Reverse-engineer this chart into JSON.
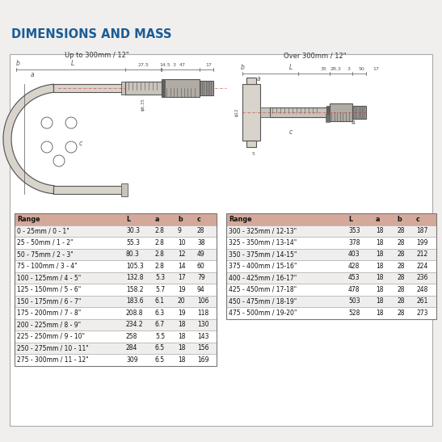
{
  "title": "DIMENSIONS AND MASS",
  "title_color": "#1a5c96",
  "bg_color": "#f0efee",
  "box_bg": "#ffffff",
  "table1_header": [
    "Range",
    "L",
    "a",
    "b",
    "c"
  ],
  "table1_header_bg": "#d4a99a",
  "table1_rows": [
    [
      "0 - 25mm / 0 - 1\"",
      "30.3",
      "2.8",
      "9",
      "28"
    ],
    [
      "25 - 50mm / 1 - 2\"",
      "55.3",
      "2.8",
      "10",
      "38"
    ],
    [
      "50 - 75mm / 2 - 3\"",
      "80.3",
      "2.8",
      "12",
      "49"
    ],
    [
      "75 - 100mm / 3 - 4\"",
      "105.3",
      "2.8",
      "14",
      "60"
    ],
    [
      "100 - 125mm / 4 - 5\"",
      "132.8",
      "5.3",
      "17",
      "79"
    ],
    [
      "125 - 150mm / 5 - 6\"",
      "158.2",
      "5.7",
      "19",
      "94"
    ],
    [
      "150 - 175mm / 6 - 7\"",
      "183.6",
      "6.1",
      "20",
      "106"
    ],
    [
      "175 - 200mm / 7 - 8\"",
      "208.8",
      "6.3",
      "19",
      "118"
    ],
    [
      "200 - 225mm / 8 - 9\"",
      "234.2",
      "6.7",
      "18",
      "130"
    ],
    [
      "225 - 250mm / 9 - 10\"",
      "258",
      "5.5",
      "18",
      "143"
    ],
    [
      "250 - 275mm / 10 - 11\"",
      "284",
      "6.5",
      "18",
      "156"
    ],
    [
      "275 - 300mm / 11 - 12\"",
      "309",
      "6.5",
      "18",
      "169"
    ]
  ],
  "table2_header": [
    "Range",
    "L",
    "a",
    "b",
    "c"
  ],
  "table2_header_bg": "#d4a99a",
  "table2_rows": [
    [
      "300 - 325mm / 12-13\"",
      "353",
      "18",
      "28",
      "187"
    ],
    [
      "325 - 350mm / 13-14\"",
      "378",
      "18",
      "28",
      "199"
    ],
    [
      "350 - 375mm / 14-15\"",
      "403",
      "18",
      "28",
      "212"
    ],
    [
      "375 - 400mm / 15-16\"",
      "428",
      "18",
      "28",
      "224"
    ],
    [
      "400 - 425mm / 16-17\"",
      "453",
      "18",
      "28",
      "236"
    ],
    [
      "425 - 450mm / 17-18\"",
      "478",
      "18",
      "28",
      "248"
    ],
    [
      "450 - 475mm / 18-19\"",
      "503",
      "18",
      "28",
      "261"
    ],
    [
      "475 - 500mm / 19-20\"",
      "528",
      "18",
      "28",
      "273"
    ]
  ],
  "subtitle_left": "Up to 300mm / 12\"",
  "subtitle_right": "Over 300mm / 12\"",
  "row_color_odd": "#f0eeec",
  "row_color_even": "#ffffff",
  "text_color": "#333333",
  "line_color": "#555555",
  "frame_fill": "#d8d4cc",
  "barrel_fill": "#c8c4bc",
  "thimble_fill": "#b0aca4",
  "handle_fill": "#989490"
}
